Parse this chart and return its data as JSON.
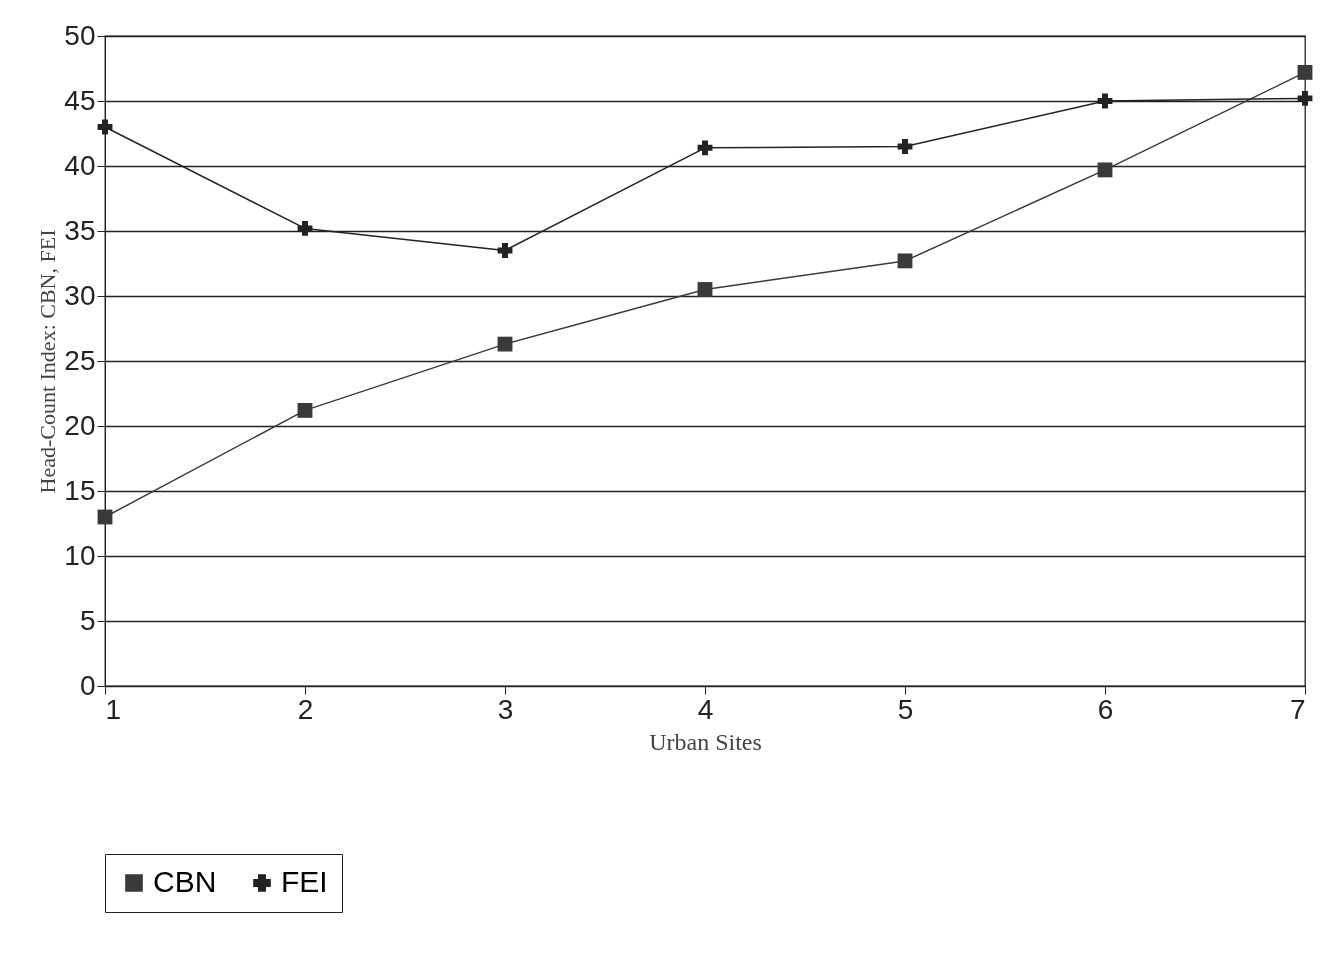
{
  "chart_data": {
    "type": "line",
    "xlabel": "Urban Sites",
    "ylabel": "Head-Count Index: CBN, FEI",
    "x": [
      1,
      2,
      3,
      4,
      5,
      6,
      7
    ],
    "xlim": [
      1,
      7
    ],
    "xticks": [
      1,
      2,
      3,
      4,
      5,
      6,
      7
    ],
    "ylim": [
      0,
      50
    ],
    "yticks": [
      0,
      5,
      10,
      15,
      20,
      25,
      30,
      35,
      40,
      45,
      50
    ],
    "grid": "y",
    "legend": "bottom",
    "series": [
      {
        "name": "CBN",
        "color": "#3a3a3a",
        "marker": "square",
        "values": [
          13,
          21.2,
          26.3,
          30.5,
          32.7,
          39.7,
          47.2
        ]
      },
      {
        "name": "FEI",
        "color": "#222222",
        "marker": "cross",
        "values": [
          43,
          35.2,
          33.5,
          41.4,
          41.5,
          45,
          45.2
        ]
      }
    ]
  }
}
